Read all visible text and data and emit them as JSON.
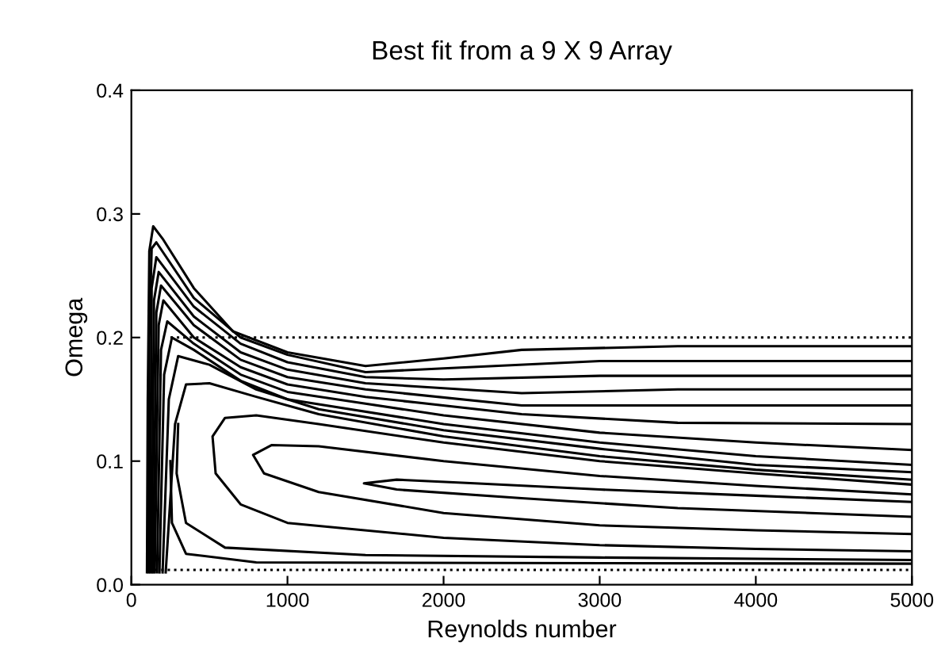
{
  "chart_data": {
    "type": "line",
    "title": "Best fit from a 9 X 9 Array",
    "xlabel": "Reynolds number",
    "ylabel": "Omega",
    "xlim": [
      0,
      5000
    ],
    "xticks": [
      0,
      1000,
      2000,
      3000,
      4000,
      5000
    ],
    "ylim": [
      0,
      0.4
    ],
    "yticks": [
      {
        "value": 0,
        "label": "0.0"
      },
      0.1,
      0.2,
      0.3,
      0.4
    ],
    "grid": false,
    "legend": false,
    "line_style": "solid",
    "series": [
      {
        "color": "#000000",
        "x": [
          100,
          105,
          115,
          140,
          200,
          400,
          650,
          1000,
          1500,
          2000,
          2500,
          3500,
          5000
        ],
        "values": [
          0.01,
          0.15,
          0.27,
          0.29,
          0.28,
          0.24,
          0.205,
          0.188,
          0.177,
          0.183,
          0.19,
          0.193,
          0.193
        ]
      },
      {
        "color": "#000000",
        "x": [
          110,
          115,
          130,
          160,
          400,
          700,
          1000,
          1500,
          2000,
          3000,
          5000
        ],
        "values": [
          0.01,
          0.2,
          0.272,
          0.277,
          0.232,
          0.2,
          0.186,
          0.172,
          0.175,
          0.181,
          0.181
        ]
      },
      {
        "color": "#000000",
        "x": [
          120,
          130,
          160,
          400,
          700,
          1000,
          1500,
          2000,
          3000,
          5000
        ],
        "values": [
          0.01,
          0.24,
          0.265,
          0.225,
          0.195,
          0.18,
          0.168,
          0.166,
          0.169,
          0.169
        ]
      },
      {
        "color": "#000000",
        "x": [
          130,
          145,
          175,
          400,
          700,
          1000,
          1500,
          2500,
          3500,
          5000
        ],
        "values": [
          0.01,
          0.23,
          0.253,
          0.217,
          0.188,
          0.174,
          0.163,
          0.155,
          0.158,
          0.158
        ]
      },
      {
        "color": "#000000",
        "x": [
          140,
          160,
          190,
          400,
          700,
          1000,
          1500,
          2500,
          3500,
          5000
        ],
        "values": [
          0.01,
          0.22,
          0.242,
          0.21,
          0.182,
          0.168,
          0.158,
          0.145,
          0.145,
          0.145
        ]
      },
      {
        "color": "#000000",
        "x": [
          150,
          175,
          205,
          400,
          700,
          1000,
          1500,
          2500,
          3500,
          5000
        ],
        "values": [
          0.01,
          0.21,
          0.23,
          0.2,
          0.176,
          0.162,
          0.152,
          0.138,
          0.131,
          0.13
        ]
      },
      {
        "color": "#000000",
        "x": [
          165,
          190,
          230,
          400,
          700,
          1000,
          2000,
          3000,
          4000,
          5000
        ],
        "values": [
          0.01,
          0.19,
          0.213,
          0.195,
          0.17,
          0.156,
          0.137,
          0.123,
          0.115,
          0.109
        ]
      },
      {
        "color": "#000000",
        "x": [
          180,
          210,
          260,
          400,
          700,
          1000,
          2000,
          3000,
          4000,
          5000
        ],
        "values": [
          0.01,
          0.17,
          0.2,
          0.19,
          0.165,
          0.15,
          0.13,
          0.115,
          0.104,
          0.097
        ]
      },
      {
        "color": "#000000",
        "x": [
          200,
          240,
          300,
          500,
          800,
          1200,
          2000,
          3000,
          4000,
          5000
        ],
        "values": [
          0.01,
          0.15,
          0.185,
          0.178,
          0.158,
          0.142,
          0.125,
          0.11,
          0.097,
          0.091
        ]
      },
      {
        "color": "#000000",
        "x": [
          220,
          280,
          350,
          500,
          800,
          1200,
          2000,
          3000,
          4000,
          5000
        ],
        "values": [
          0.01,
          0.13,
          0.162,
          0.163,
          0.152,
          0.138,
          0.12,
          0.104,
          0.093,
          0.085
        ]
      },
      {
        "color": "#000000",
        "x": [
          5000,
          4000,
          3000,
          2000,
          1200,
          800,
          600,
          520,
          540,
          700,
          1000,
          2000,
          3000,
          4000,
          5000
        ],
        "values": [
          0.081,
          0.09,
          0.1,
          0.115,
          0.13,
          0.137,
          0.135,
          0.12,
          0.09,
          0.065,
          0.05,
          0.038,
          0.032,
          0.029,
          0.027
        ]
      },
      {
        "color": "#000000",
        "x": [
          5000,
          4000,
          3000,
          2000,
          1200,
          900,
          780,
          850,
          1200,
          2000,
          3000,
          4000,
          5000
        ],
        "values": [
          0.073,
          0.08,
          0.088,
          0.1,
          0.112,
          0.113,
          0.105,
          0.09,
          0.075,
          0.058,
          0.048,
          0.044,
          0.041
        ]
      },
      {
        "color": "#000000",
        "x": [
          5000,
          4000,
          3000,
          2200,
          1700,
          1490,
          1700,
          2500,
          3500,
          5000
        ],
        "values": [
          0.067,
          0.072,
          0.077,
          0.082,
          0.085,
          0.082,
          0.077,
          0.07,
          0.062,
          0.055
        ]
      },
      {
        "color": "#000000",
        "x": [
          300,
          290,
          350,
          600,
          1500,
          3000,
          5000
        ],
        "values": [
          0.13,
          0.09,
          0.05,
          0.03,
          0.024,
          0.022,
          0.02
        ]
      },
      {
        "color": "#000000",
        "x": [
          250,
          260,
          350,
          800,
          5000
        ],
        "values": [
          0.1,
          0.05,
          0.025,
          0.018,
          0.017
        ]
      },
      {
        "color": "#000000",
        "line_style": "dotted",
        "x": [
          250,
          5000
        ],
        "values": [
          0.2,
          0.2
        ]
      },
      {
        "color": "#000000",
        "line_style": "dotted",
        "x": [
          150,
          5000
        ],
        "values": [
          0.012,
          0.012
        ]
      }
    ]
  }
}
